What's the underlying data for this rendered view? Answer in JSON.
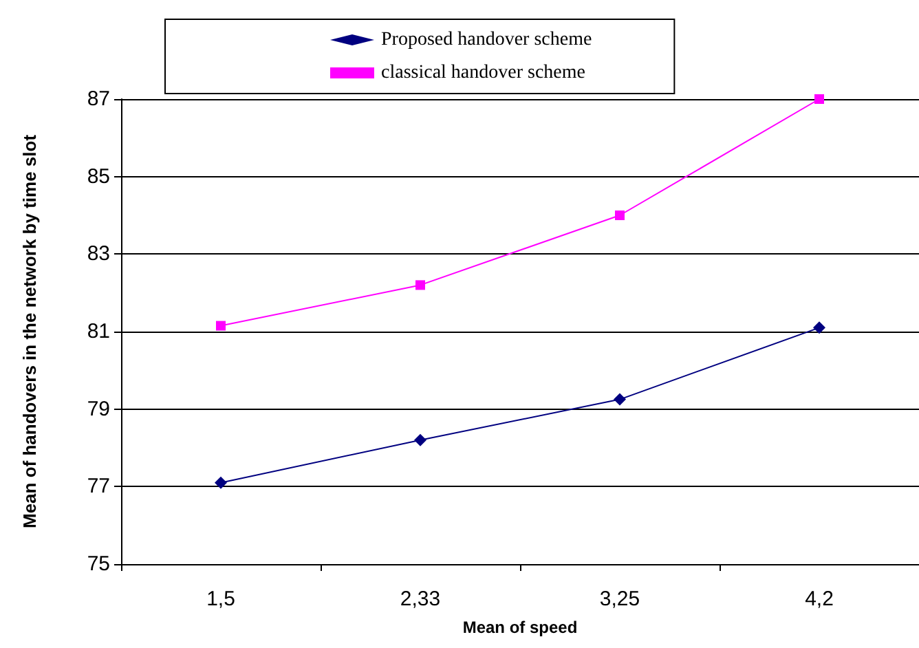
{
  "chart_data": {
    "type": "line",
    "xlabel": "Mean of speed",
    "ylabel": "Mean of handovers in the network by time slot",
    "categories": [
      "1,5",
      "2,33",
      "3,25",
      "4,2"
    ],
    "series": [
      {
        "name": "Proposed handover scheme",
        "color": "#000080",
        "marker": "diamond",
        "values": [
          77.1,
          78.2,
          79.25,
          81.1
        ]
      },
      {
        "name": "classical handover scheme",
        "color": "#ff00ff",
        "marker": "square",
        "values": [
          81.15,
          82.2,
          84.0,
          87.0
        ]
      }
    ],
    "ylim": [
      75,
      87
    ],
    "yticks": [
      75,
      77,
      79,
      81,
      83,
      85,
      87
    ],
    "grid": "y",
    "legend": "top left"
  }
}
